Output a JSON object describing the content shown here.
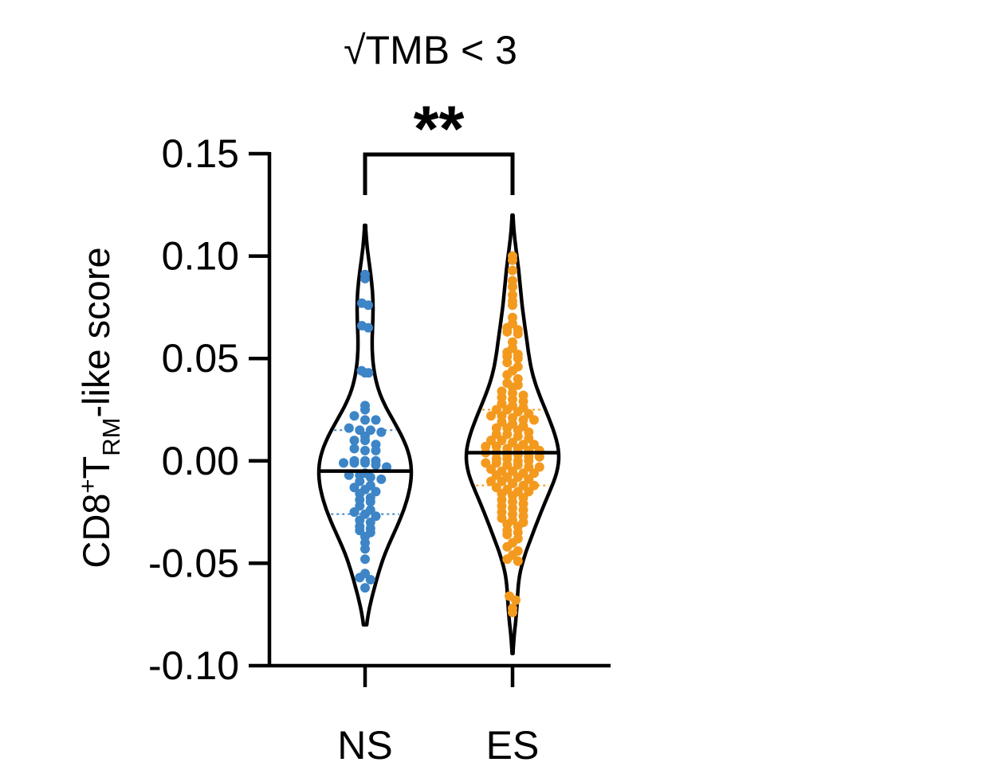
{
  "chart_data": {
    "type": "violin",
    "title": "√TMB < 3",
    "ylabel": {
      "main": "CD8",
      "sup": "+",
      "mid": "T",
      "sub": "RM",
      "rest": "-like score"
    },
    "ylim": [
      -0.1,
      0.15
    ],
    "yticks": [
      -0.1,
      -0.05,
      0.0,
      0.05,
      0.1,
      0.15
    ],
    "ytick_labels": [
      "-0.10",
      "-0.05",
      "0.00",
      "0.05",
      "0.10",
      "0.15"
    ],
    "categories": [
      "NS",
      "ES"
    ],
    "significance": {
      "label": "**",
      "between": [
        "NS",
        "ES"
      ]
    },
    "grid": false,
    "series": [
      {
        "category": "NS",
        "color": "#3d85c6",
        "median": -0.005,
        "quartiles": [
          -0.026,
          0.015
        ],
        "range": [
          -0.08,
          0.115
        ],
        "values": [
          0.091,
          0.089,
          0.077,
          0.076,
          0.066,
          0.065,
          0.044,
          0.043,
          0.043,
          0.027,
          0.025,
          0.022,
          0.02,
          0.02,
          0.016,
          0.015,
          0.015,
          0.014,
          0.012,
          0.01,
          0.01,
          0.008,
          0.006,
          0.005,
          0.005,
          0.0,
          -0.001,
          -0.001,
          0.0,
          -0.002,
          0.0,
          -0.001,
          -0.003,
          -0.006,
          -0.007,
          -0.008,
          -0.007,
          -0.009,
          -0.01,
          -0.012,
          -0.013,
          -0.014,
          -0.015,
          -0.016,
          -0.018,
          -0.019,
          -0.02,
          -0.022,
          -0.024,
          -0.025,
          -0.026,
          -0.027,
          -0.029,
          -0.03,
          -0.032,
          -0.033,
          -0.034,
          -0.035,
          -0.037,
          -0.04,
          -0.043,
          -0.048,
          -0.055,
          -0.057,
          -0.058,
          -0.062
        ]
      },
      {
        "category": "ES",
        "color": "#f39a1e",
        "median": 0.004,
        "quartiles": [
          -0.012,
          0.025
        ],
        "range": [
          -0.094,
          0.12
        ],
        "values": [
          0.1,
          0.098,
          0.093,
          0.088,
          0.085,
          0.081,
          0.078,
          0.076,
          0.07,
          0.067,
          0.065,
          0.064,
          0.063,
          0.062,
          0.058,
          0.055,
          0.053,
          0.052,
          0.051,
          0.05,
          0.048,
          0.046,
          0.044,
          0.042,
          0.04,
          0.038,
          0.037,
          0.036,
          0.034,
          0.033,
          0.032,
          0.031,
          0.03,
          0.029,
          0.028,
          0.027,
          0.026,
          0.025,
          0.025,
          0.024,
          0.023,
          0.022,
          0.022,
          0.021,
          0.02,
          0.02,
          0.019,
          0.018,
          0.017,
          0.016,
          0.016,
          0.015,
          0.014,
          0.013,
          0.013,
          0.012,
          0.011,
          0.01,
          0.01,
          0.009,
          0.008,
          0.008,
          0.007,
          0.007,
          0.006,
          0.006,
          0.005,
          0.005,
          0.004,
          0.004,
          0.003,
          0.003,
          0.002,
          0.002,
          0.001,
          0.001,
          0.0,
          0.0,
          -0.001,
          -0.001,
          -0.002,
          -0.002,
          -0.003,
          -0.003,
          -0.004,
          -0.005,
          -0.005,
          -0.006,
          -0.006,
          -0.007,
          -0.008,
          -0.008,
          -0.009,
          -0.01,
          -0.01,
          -0.011,
          -0.012,
          -0.012,
          -0.013,
          -0.014,
          -0.015,
          -0.015,
          -0.016,
          -0.017,
          -0.018,
          -0.019,
          -0.02,
          -0.021,
          -0.022,
          -0.023,
          -0.024,
          -0.025,
          -0.026,
          -0.027,
          -0.028,
          -0.029,
          -0.03,
          -0.031,
          -0.032,
          -0.034,
          -0.035,
          -0.036,
          -0.038,
          -0.04,
          -0.042,
          -0.044,
          -0.046,
          -0.048,
          -0.049,
          -0.066,
          -0.068,
          -0.072,
          -0.074
        ]
      }
    ]
  }
}
